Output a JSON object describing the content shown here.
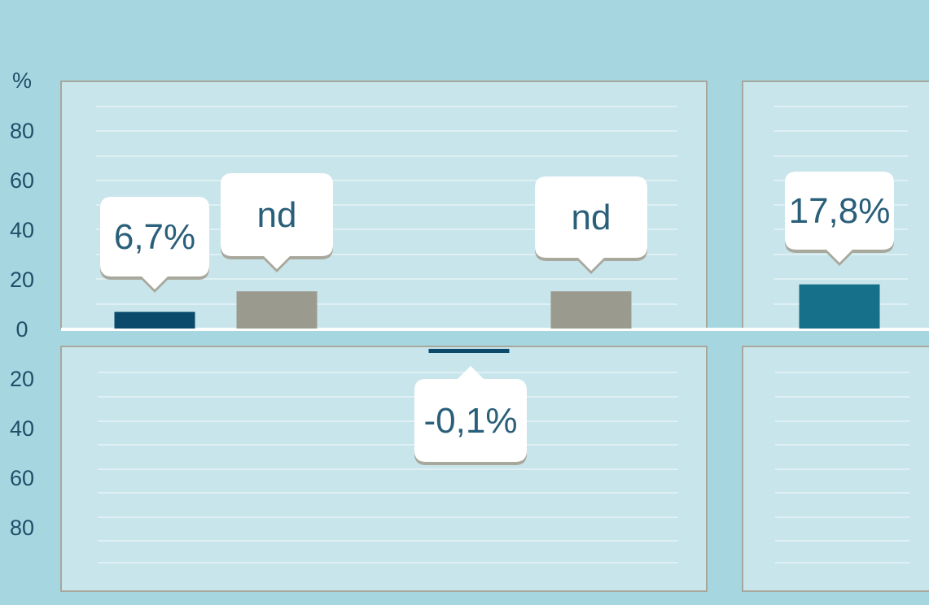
{
  "chart_data": {
    "type": "bar",
    "y_unit_label": "%",
    "ylim": [
      -100,
      100
    ],
    "y_ticks": [
      80,
      60,
      40,
      20,
      0,
      -20,
      -40,
      -60,
      -80
    ],
    "y_tick_labels": [
      "80",
      "60",
      "40",
      "20",
      "0",
      "20",
      "40",
      "60",
      "80"
    ],
    "grid": true,
    "bars": [
      {
        "value": 6.7,
        "label": "6,7%",
        "color": "#0b4a6b"
      },
      {
        "value": 15,
        "label": "nd",
        "color": "#9b9a8f"
      },
      {
        "value": -0.1,
        "label": "-0,1%",
        "color": "#0b4a6b"
      },
      {
        "value": 15,
        "label": "nd",
        "color": "#9b9a8f"
      },
      {
        "value": 17.8,
        "label": "17,8%",
        "color": "#17708a"
      }
    ]
  },
  "colors": {
    "background": "#a6d7e1",
    "panel": "#c8e5eb",
    "gridline": "#e6f3f6",
    "panel_border": "#a7a79c",
    "callout_bg": "#ffffff",
    "callout_shadow": "#a9a89d"
  }
}
